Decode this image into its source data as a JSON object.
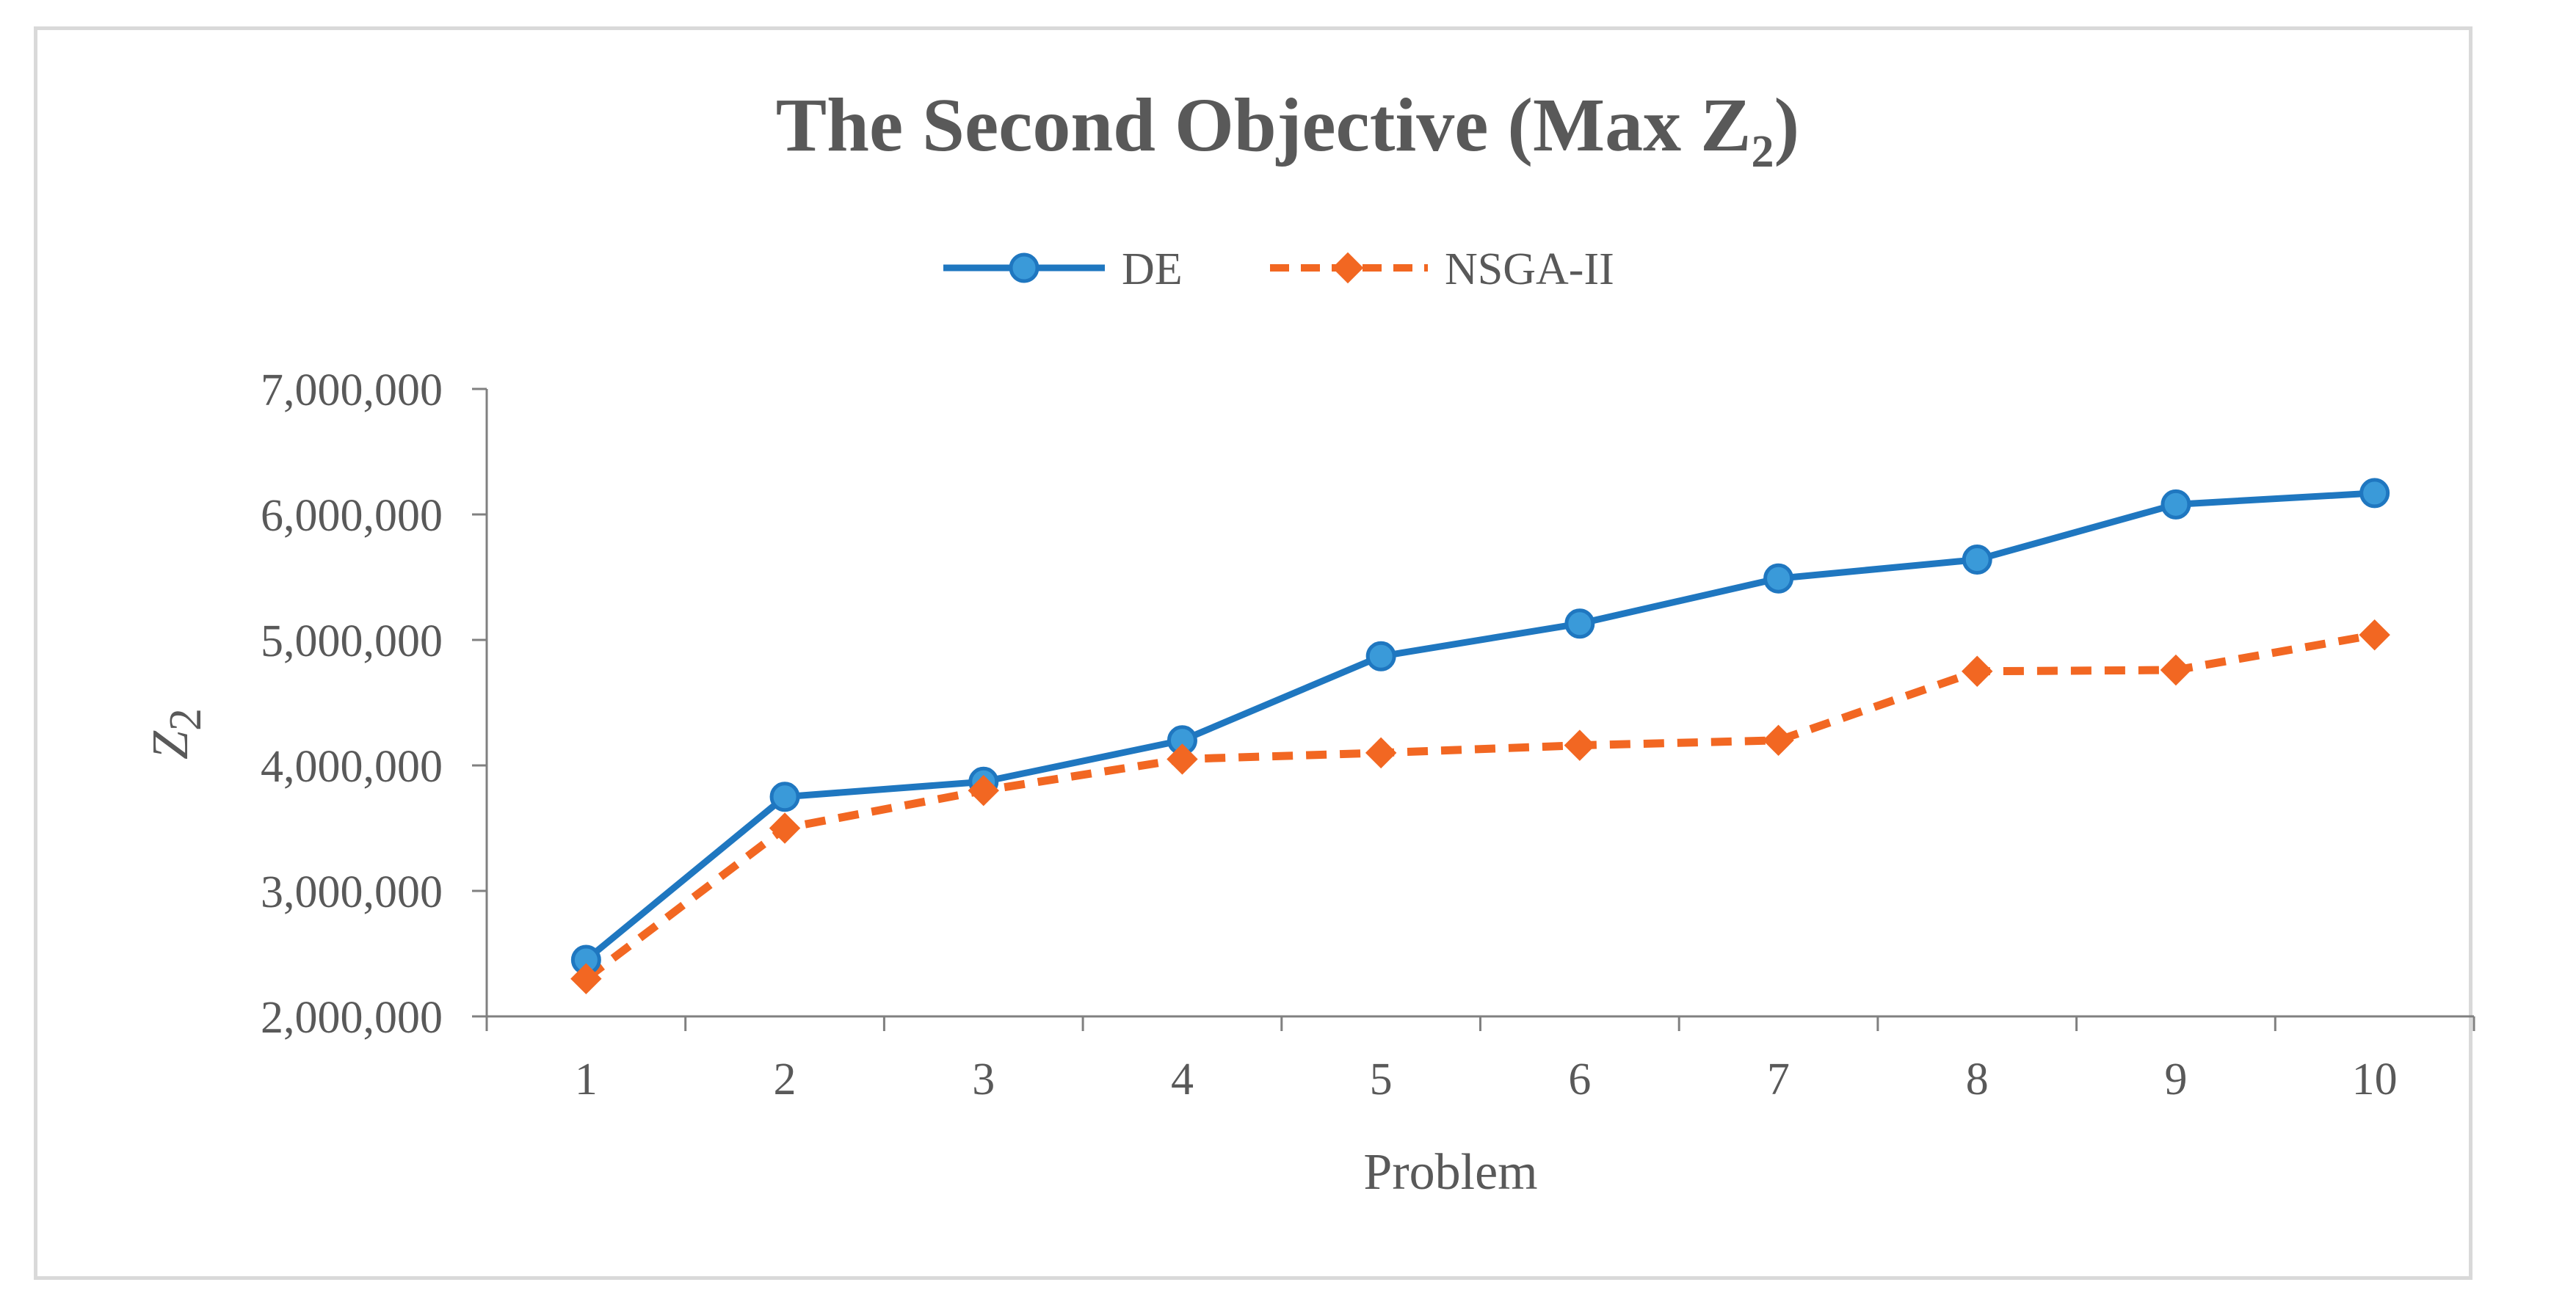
{
  "chart_data": {
    "type": "line",
    "title": {
      "main": "The Second Objective (Max Z",
      "sub": "2",
      "close": ")"
    },
    "xlabel": "Problem",
    "ylabel": {
      "main": "Z",
      "sub": "2"
    },
    "x": [
      1,
      2,
      3,
      4,
      5,
      6,
      7,
      8,
      9,
      10
    ],
    "ylim": [
      2000000,
      7000000
    ],
    "yticks": [
      2000000,
      3000000,
      4000000,
      5000000,
      6000000,
      7000000
    ],
    "ytick_labels": [
      "2,000,000",
      "3,000,000",
      "4,000,000",
      "5,000,000",
      "6,000,000",
      "7,000,000"
    ],
    "xtick_labels": [
      "1",
      "2",
      "3",
      "4",
      "5",
      "6",
      "7",
      "8",
      "9",
      "10"
    ],
    "grid": false,
    "legend_position": "top-center",
    "series": [
      {
        "name": "DE",
        "color": "#1f77c0",
        "marker": "circle",
        "style": "solid",
        "values": [
          2450000,
          3750000,
          3870000,
          4200000,
          4870000,
          5130000,
          5490000,
          5640000,
          6080000,
          6170000
        ]
      },
      {
        "name": "NSGA-II",
        "color": "#f26722",
        "marker": "diamond",
        "style": "dashed",
        "values": [
          2300000,
          3500000,
          3800000,
          4050000,
          4100000,
          4160000,
          4200000,
          4750000,
          4760000,
          5040000
        ]
      }
    ]
  }
}
